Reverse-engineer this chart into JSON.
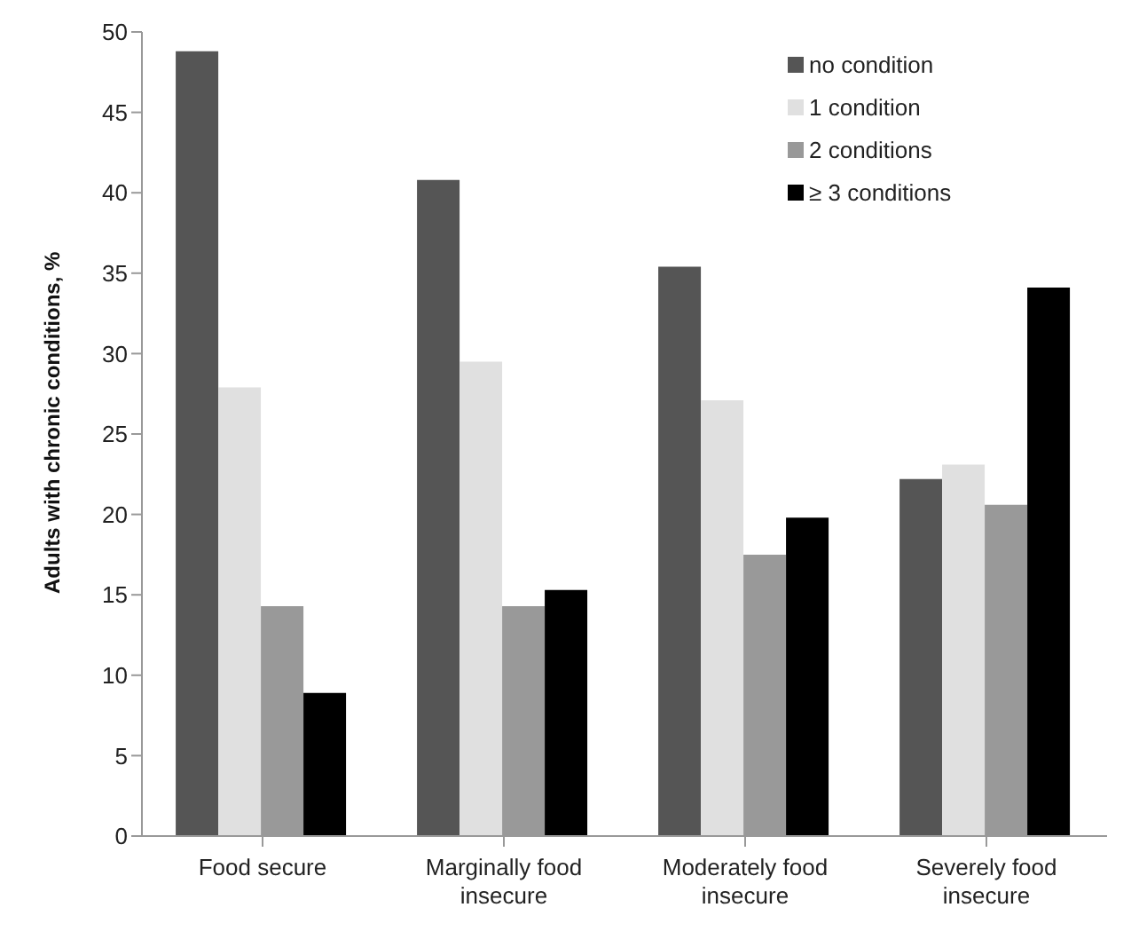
{
  "chart_data": {
    "type": "bar",
    "ylabel": "Adults with chronic conditions, %",
    "categories": [
      "Food secure",
      "Marginally food insecure",
      "Moderately food insecure",
      "Severely food insecure"
    ],
    "series": [
      {
        "name": "no condition",
        "color": "#555555",
        "values": [
          48.8,
          40.8,
          35.4,
          22.2
        ]
      },
      {
        "name": "1 condition",
        "color": "#e0e0e0",
        "values": [
          27.9,
          29.5,
          27.1,
          23.1
        ]
      },
      {
        "name": "2 conditions",
        "color": "#999999",
        "values": [
          14.3,
          14.3,
          17.5,
          20.6
        ]
      },
      {
        "name": "≥ 3 conditions",
        "color": "#000000",
        "values": [
          8.9,
          15.3,
          19.8,
          34.1
        ]
      }
    ],
    "ylim": [
      0,
      50
    ],
    "yticks": [
      0,
      5,
      10,
      15,
      20,
      25,
      30,
      35,
      40,
      45,
      50
    ],
    "grid": false,
    "legend": "top right"
  }
}
